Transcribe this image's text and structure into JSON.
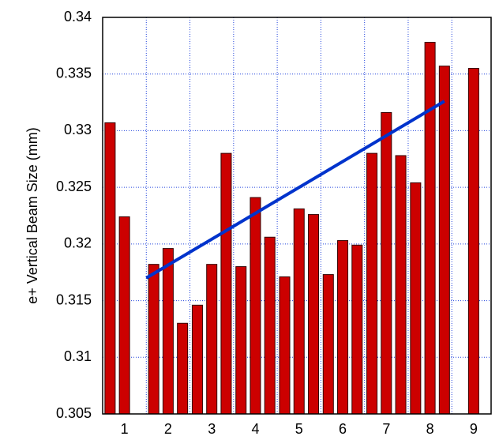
{
  "chart_data": {
    "type": "bar",
    "y_label": "e+ Vertical Beam Size (mm)",
    "xlim": [
      0.5,
      9.4
    ],
    "xticks": [
      1,
      2,
      3,
      4,
      5,
      6,
      7,
      8,
      9
    ],
    "xgrid": [
      1.5,
      2.5,
      3.5,
      4.5,
      5.5,
      6.5,
      7.5,
      8.5
    ],
    "ylim": [
      0.305,
      0.34
    ],
    "yticks": [
      0.305,
      0.31,
      0.315,
      0.32,
      0.325,
      0.33,
      0.335,
      0.34
    ],
    "grid": true,
    "series": [
      {
        "type": "bar",
        "color": "#cc0000",
        "x": [
          0.67,
          1,
          1.67,
          2,
          2.33,
          2.67,
          3,
          3.33,
          3.67,
          4,
          4.33,
          4.67,
          5,
          5.33,
          5.67,
          6,
          6.33,
          6.67,
          7,
          7.33,
          7.67,
          8,
          8.33,
          9
        ],
        "values": [
          0.3307,
          0.3224,
          0.3182,
          0.3196,
          0.313,
          0.3146,
          0.3182,
          0.328,
          0.318,
          0.3241,
          0.3206,
          0.3171,
          0.3231,
          0.3226,
          0.3173,
          0.3203,
          0.3199,
          0.328,
          0.3316,
          0.3278,
          0.3254,
          0.3378,
          0.3357,
          0.3355
        ]
      },
      {
        "type": "line",
        "color": "#0033cc",
        "x": [
          1.5,
          8.33
        ],
        "values": [
          0.317,
          0.3326
        ]
      }
    ]
  }
}
